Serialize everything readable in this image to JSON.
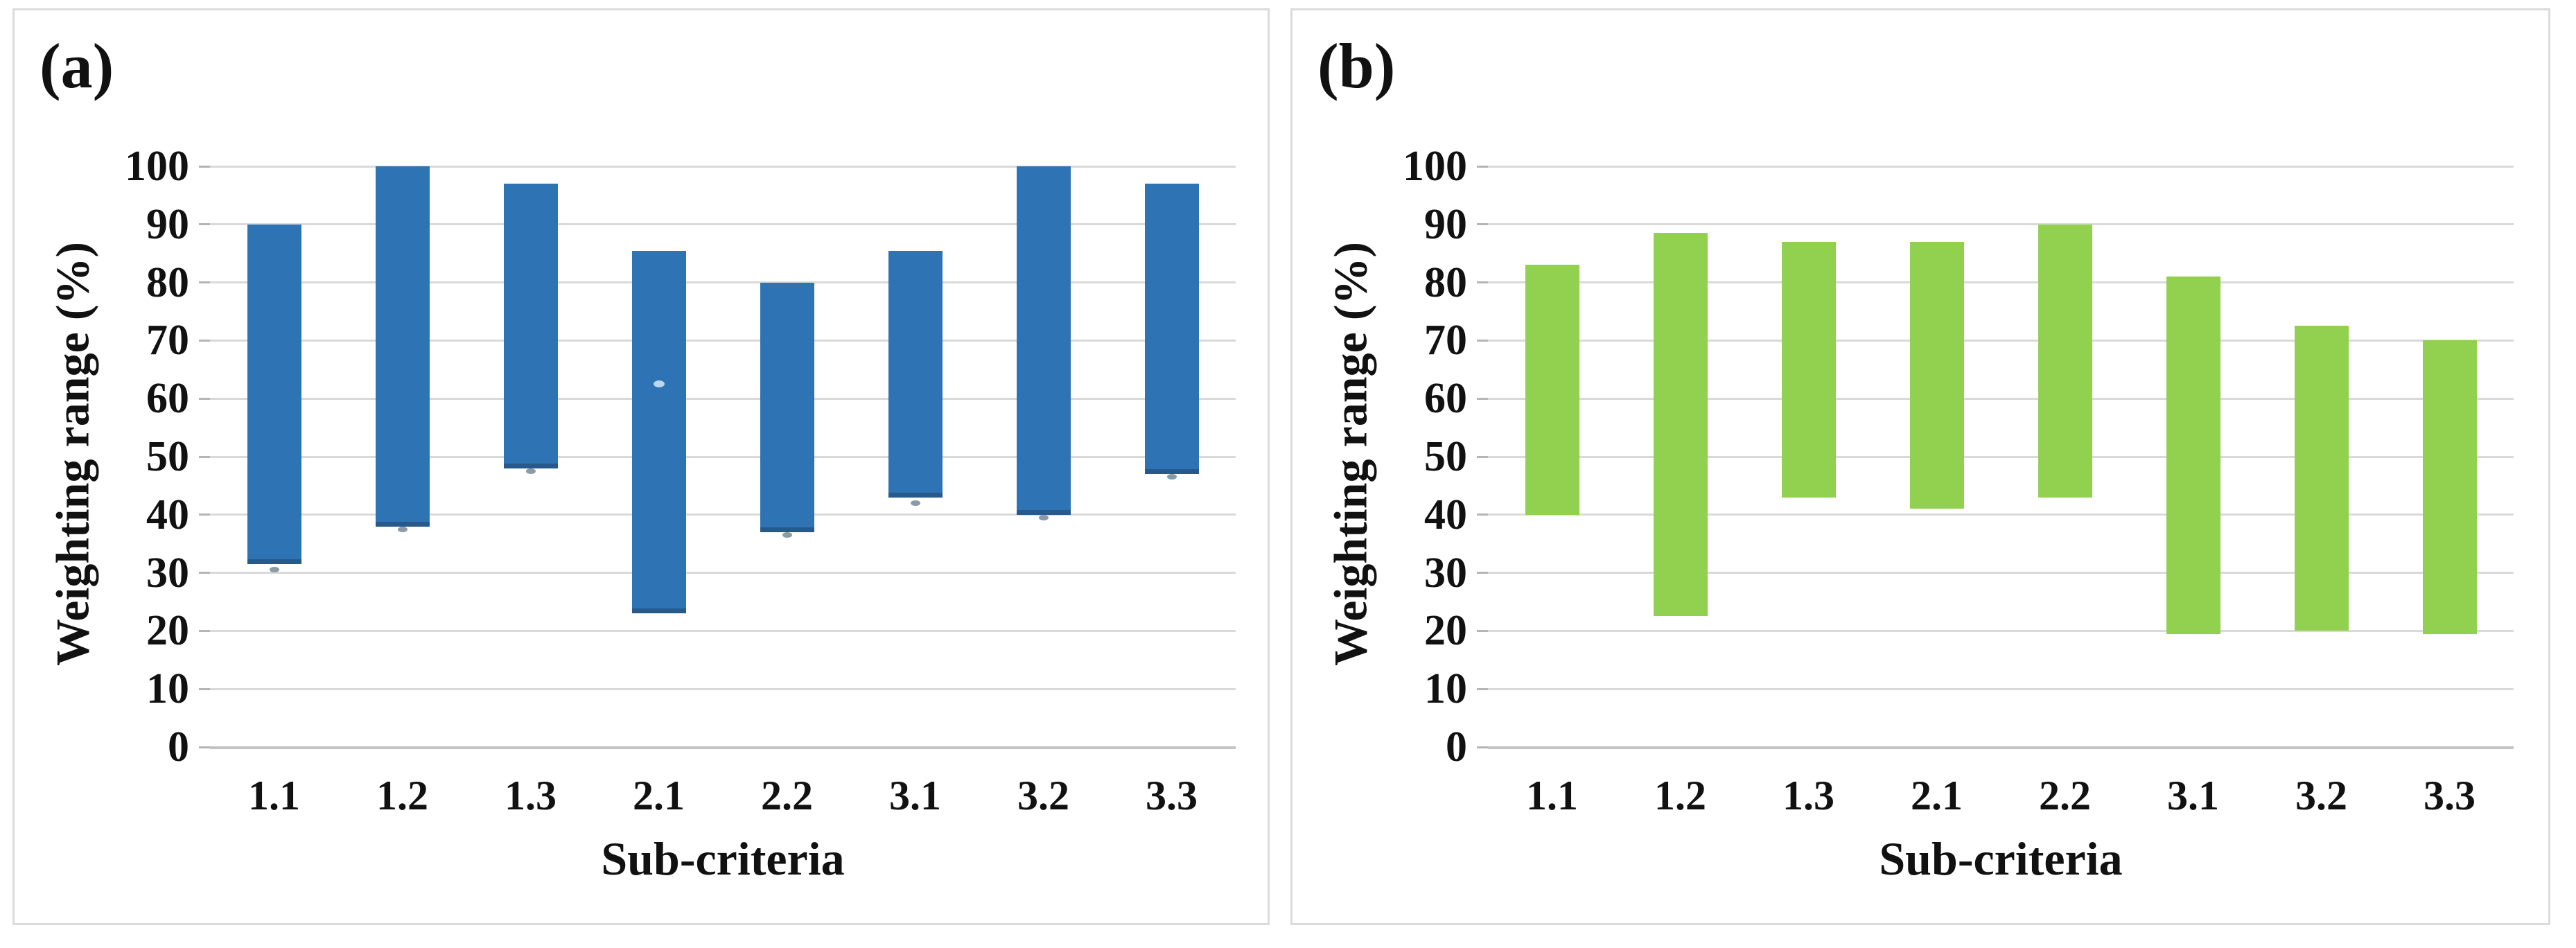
{
  "panels": [
    {
      "id": "a",
      "label": "(a)",
      "y_axis_title": "Weighting range (%)",
      "x_axis_title": "Sub-criteria"
    },
    {
      "id": "b",
      "label": "(b)",
      "y_axis_title": "Weighting range (%)",
      "x_axis_title": "Sub-criteria"
    }
  ],
  "chart_data": [
    {
      "type": "bar",
      "subtype": "floating-range-column",
      "panel_label": "(a)",
      "title": "(a)",
      "xlabel": "Sub-criteria",
      "ylabel": "Weighting range (%)",
      "categories": [
        "1.1",
        "1.2",
        "1.3",
        "2.1",
        "2.2",
        "3.1",
        "3.2",
        "3.3"
      ],
      "series": [
        {
          "name": "Weighting range",
          "ranges": [
            [
              31.5,
              90
            ],
            [
              38,
              100
            ],
            [
              48,
              97
            ],
            [
              23,
              85.5
            ],
            [
              37,
              80
            ],
            [
              43,
              85.5
            ],
            [
              40,
              100
            ],
            [
              47,
              97
            ]
          ]
        }
      ],
      "below_bar_marker_values": [
        30.5,
        37.5,
        47.5,
        null,
        36.5,
        42,
        39.5,
        46.5
      ],
      "inner_marker": {
        "category": "2.1",
        "category_index": 3,
        "value": 62.5
      },
      "ylim": [
        0,
        100
      ],
      "ytick_step": 10,
      "yticks": [
        0,
        10,
        20,
        30,
        40,
        50,
        60,
        70,
        80,
        90,
        100
      ],
      "grid": true,
      "legend": false,
      "bar_color": "#2E74B5",
      "bar_bottom_edge_color": "#27598C",
      "marker_color": "#8A9BA6",
      "inner_marker_color": "#BDD7EE"
    },
    {
      "type": "bar",
      "subtype": "floating-range-column",
      "panel_label": "(b)",
      "title": "(b)",
      "xlabel": "Sub-criteria",
      "ylabel": "Weighting range (%)",
      "categories": [
        "1.1",
        "1.2",
        "1.3",
        "2.1",
        "2.2",
        "3.1",
        "3.2",
        "3.3"
      ],
      "series": [
        {
          "name": "Weighting range",
          "ranges": [
            [
              40,
              83
            ],
            [
              22.5,
              88.5
            ],
            [
              43,
              87
            ],
            [
              41,
              87
            ],
            [
              43,
              90
            ],
            [
              19.5,
              81
            ],
            [
              20,
              72.5
            ],
            [
              19.5,
              70
            ]
          ]
        }
      ],
      "below_bar_marker_values": [
        null,
        null,
        null,
        null,
        null,
        null,
        null,
        null
      ],
      "inner_marker": null,
      "ylim": [
        0,
        100
      ],
      "ytick_step": 10,
      "yticks": [
        0,
        10,
        20,
        30,
        40,
        50,
        60,
        70,
        80,
        90,
        100
      ],
      "grid": true,
      "legend": false,
      "bar_color": "#92D050",
      "bar_bottom_edge_color": null,
      "marker_color": null,
      "inner_marker_color": null
    }
  ],
  "colors": {
    "background": "#FFFFFF",
    "panel_border": "#DBDBDB",
    "gridline": "#D9D9D9",
    "axis_baseline": "#C2C2C2",
    "tick_mark": "#B5B5B5",
    "text": "#111111"
  }
}
